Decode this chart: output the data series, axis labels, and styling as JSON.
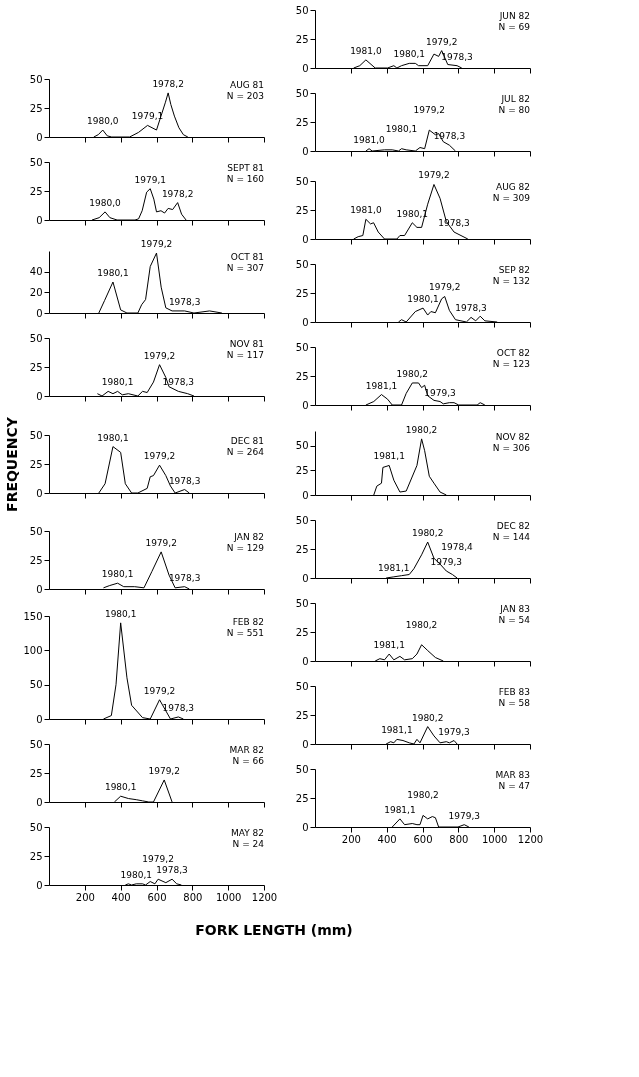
{
  "chart_data": [
    {
      "type": "line",
      "title": "JUN 82",
      "subtitle": "N = 69",
      "x": [
        216,
        250,
        284,
        336,
        405,
        440,
        457,
        483,
        526,
        560,
        578,
        629,
        664,
        690,
        707,
        741,
        793,
        819
      ],
      "series": [
        {
          "color": "#000000",
          "values": [
            0,
            2,
            7,
            0,
            0,
            2,
            0,
            2,
            4,
            4,
            2,
            2,
            12,
            10,
            15,
            3,
            2,
            0
          ]
        }
      ],
      "xlim": [
        0,
        1200
      ],
      "xticks": [
        200,
        400,
        600,
        800,
        1000,
        1200
      ],
      "ylim": [
        0,
        50
      ],
      "yticks": [
        0,
        25,
        50
      ],
      "tick_labels": "y",
      "annotations": [
        {
          "text": "1981,0",
          "x": 284,
          "y": 7
        },
        {
          "text": "1980,1",
          "x": 526,
          "y": 4
        },
        {
          "text": "1979,2",
          "x": 707,
          "y": 15
        },
        {
          "text": "1978,3",
          "x": 793,
          "y": 2
        }
      ]
    },
    {
      "type": "line",
      "title": "AUG 81",
      "subtitle": "N = 203",
      "x": [
        250,
        275,
        300,
        325,
        350,
        450,
        500,
        550,
        575,
        600,
        625,
        650,
        665,
        680,
        700,
        725,
        750,
        775
      ],
      "series": [
        {
          "color": "#000000",
          "values": [
            0,
            2,
            6,
            1,
            0,
            0,
            4,
            10,
            8,
            6,
            18,
            30,
            38,
            28,
            18,
            8,
            2,
            0
          ]
        }
      ],
      "xlim": [
        0,
        1200
      ],
      "xticks": [
        200,
        400,
        600,
        800,
        1000,
        1200
      ],
      "ylim": [
        0,
        50
      ],
      "yticks": [
        0,
        25,
        50
      ],
      "tick_labels": "y",
      "annotations": [
        {
          "text": "1980,0",
          "x": 300,
          "y": 6
        },
        {
          "text": "1979,1",
          "x": 550,
          "y": 10
        },
        {
          "text": "1978,2",
          "x": 665,
          "y": 38
        }
      ]
    },
    {
      "type": "line",
      "title": "JUL 82",
      "subtitle": "N = 80",
      "x": [
        284,
        302,
        319,
        388,
        431,
        466,
        483,
        509,
        560,
        586,
        612,
        638,
        672,
        690,
        716,
        750,
        784
      ],
      "series": [
        {
          "color": "#000000",
          "values": [
            0,
            2,
            0,
            1,
            1,
            0,
            2,
            1,
            0,
            3,
            2,
            18,
            14,
            15,
            8,
            5,
            0
          ]
        }
      ],
      "xlim": [
        0,
        1200
      ],
      "xticks": [
        200,
        400,
        600,
        800,
        1000,
        1200
      ],
      "ylim": [
        0,
        50
      ],
      "yticks": [
        0,
        25,
        50
      ],
      "tick_labels": "y",
      "annotations": [
        {
          "text": "1981,0",
          "x": 302,
          "y": 2
        },
        {
          "text": "1980,1",
          "x": 483,
          "y": 2
        },
        {
          "text": "1979,2",
          "x": 638,
          "y": 18
        },
        {
          "text": "1978,3",
          "x": 750,
          "y": 5
        }
      ]
    },
    {
      "type": "line",
      "title": "SEPT 81",
      "subtitle": "N = 160",
      "x": [
        240,
        280,
        313,
        340,
        380,
        480,
        500,
        520,
        545,
        565,
        585,
        600,
        625,
        645,
        665,
        690,
        718,
        740,
        765
      ],
      "series": [
        {
          "color": "#000000",
          "values": [
            0,
            2,
            7,
            2,
            0,
            0,
            1,
            8,
            24,
            27,
            18,
            7,
            8,
            6,
            10,
            9,
            15,
            5,
            0
          ]
        }
      ],
      "xlim": [
        0,
        1200
      ],
      "xticks": [
        200,
        400,
        600,
        800,
        1000,
        1200
      ],
      "ylim": [
        0,
        50
      ],
      "yticks": [
        0,
        25,
        50
      ],
      "tick_labels": "y",
      "annotations": [
        {
          "text": "1980,0",
          "x": 313,
          "y": 7
        },
        {
          "text": "1979,1",
          "x": 565,
          "y": 27
        },
        {
          "text": "1978,2",
          "x": 718,
          "y": 15
        }
      ]
    },
    {
      "type": "line",
      "title": "AUG 82",
      "subtitle": "N = 309",
      "x": [
        216,
        241,
        267,
        284,
        310,
        327,
        353,
        388,
        457,
        474,
        500,
        543,
        569,
        595,
        629,
        664,
        698,
        733,
        776,
        853
      ],
      "series": [
        {
          "color": "#000000",
          "values": [
            0,
            2,
            3,
            17,
            13,
            14,
            6,
            0,
            0,
            3,
            3,
            14,
            10,
            10,
            30,
            47,
            35,
            15,
            6,
            0
          ]
        }
      ],
      "xlim": [
        0,
        1200
      ],
      "xticks": [
        200,
        400,
        600,
        800,
        1000,
        1200
      ],
      "ylim": [
        0,
        50
      ],
      "yticks": [
        0,
        25,
        50
      ],
      "tick_labels": "y",
      "annotations": [
        {
          "text": "1981,0",
          "x": 284,
          "y": 17
        },
        {
          "text": "1980,1",
          "x": 543,
          "y": 14
        },
        {
          "text": "1979,2",
          "x": 664,
          "y": 47
        },
        {
          "text": "1978,3",
          "x": 776,
          "y": 6
        }
      ]
    },
    {
      "type": "line",
      "title": "OCT 81",
      "subtitle": "N = 307",
      "x": [
        278,
        310,
        357,
        400,
        435,
        496,
        517,
        539,
        565,
        600,
        626,
        652,
        687,
        757,
        809,
        896,
        965
      ],
      "series": [
        {
          "color": "#000000",
          "values": [
            0,
            12,
            30,
            3,
            0,
            0,
            8,
            13,
            45,
            58,
            25,
            5,
            2,
            2,
            0,
            2,
            0
          ]
        }
      ],
      "xlim": [
        0,
        1200
      ],
      "xticks": [
        200,
        400,
        600,
        800,
        1000,
        1200
      ],
      "ylim": [
        0,
        60
      ],
      "yticks": [
        0,
        20,
        40
      ],
      "tick_labels": "y",
      "annotations": [
        {
          "text": "1980,1",
          "x": 357,
          "y": 30
        },
        {
          "text": "1979,2",
          "x": 600,
          "y": 58
        },
        {
          "text": "1978,3",
          "x": 757,
          "y": 2
        }
      ]
    },
    {
      "type": "line",
      "title": "SEP 82",
      "subtitle": "N = 132",
      "x": [
        466,
        483,
        509,
        560,
        603,
        629,
        647,
        672,
        707,
        724,
        750,
        784,
        845,
        871,
        897,
        922,
        948,
        1017
      ],
      "series": [
        {
          "color": "#000000",
          "values": [
            0,
            2,
            0,
            9,
            12,
            6,
            9,
            8,
            20,
            22,
            10,
            2,
            0,
            4,
            1,
            5,
            1,
            0
          ]
        }
      ],
      "xlim": [
        0,
        1200
      ],
      "xticks": [
        200,
        400,
        600,
        800,
        1000,
        1200
      ],
      "ylim": [
        0,
        50
      ],
      "yticks": [
        0,
        25,
        50
      ],
      "tick_labels": "y",
      "annotations": [
        {
          "text": "1980,1",
          "x": 603,
          "y": 12
        },
        {
          "text": "1979,2",
          "x": 724,
          "y": 22
        },
        {
          "text": "1978,3",
          "x": 871,
          "y": 4
        }
      ]
    },
    {
      "type": "line",
      "title": "NOV 81",
      "subtitle": "N = 117",
      "x": [
        270,
        296,
        330,
        357,
        383,
        409,
        443,
        496,
        522,
        548,
        583,
        617,
        652,
        670,
        722,
        774,
        809
      ],
      "series": [
        {
          "color": "#000000",
          "values": [
            2,
            0,
            4,
            2,
            4,
            1,
            2,
            0,
            4,
            3,
            12,
            27,
            16,
            8,
            4,
            2,
            0
          ]
        }
      ],
      "xlim": [
        0,
        1200
      ],
      "xticks": [
        200,
        400,
        600,
        800,
        1000,
        1200
      ],
      "ylim": [
        0,
        50
      ],
      "yticks": [
        0,
        25,
        50
      ],
      "tick_labels": "y",
      "annotations": [
        {
          "text": "1980,1",
          "x": 383,
          "y": 4
        },
        {
          "text": "1979,2",
          "x": 617,
          "y": 27
        },
        {
          "text": "1978,3",
          "x": 722,
          "y": 4
        }
      ]
    },
    {
      "type": "line",
      "title": "OCT 82",
      "subtitle": "N = 123",
      "x": [
        284,
        328,
        371,
        405,
        431,
        483,
        509,
        543,
        578,
        595,
        612,
        629,
        664,
        698,
        716,
        750,
        776,
        802,
        905,
        922,
        948
      ],
      "series": [
        {
          "color": "#000000",
          "values": [
            0,
            3,
            9,
            5,
            0,
            0,
            10,
            19,
            19,
            15,
            17,
            8,
            4,
            3,
            1,
            2,
            2,
            0,
            0,
            2,
            0
          ]
        }
      ],
      "xlim": [
        0,
        1200
      ],
      "xticks": [
        200,
        400,
        600,
        800,
        1000,
        1200
      ],
      "ylim": [
        0,
        50
      ],
      "yticks": [
        0,
        25,
        50
      ],
      "tick_labels": "y",
      "annotations": [
        {
          "text": "1981,1",
          "x": 371,
          "y": 9
        },
        {
          "text": "1980,2",
          "x": 543,
          "y": 19
        },
        {
          "text": "1979,3",
          "x": 698,
          "y": 3
        }
      ]
    },
    {
      "type": "line",
      "title": "DEC 81",
      "subtitle": "N = 264",
      "ylabel": "FREQUENCY",
      "x": [
        278,
        313,
        357,
        400,
        426,
        461,
        496,
        548,
        565,
        583,
        617,
        652,
        678,
        704,
        757,
        783
      ],
      "series": [
        {
          "color": "#000000",
          "values": [
            0,
            8,
            40,
            35,
            8,
            0,
            0,
            4,
            14,
            15,
            24,
            15,
            6,
            0,
            3,
            0
          ]
        }
      ],
      "xlim": [
        0,
        1200
      ],
      "xticks": [
        200,
        400,
        600,
        800,
        1000,
        1200
      ],
      "ylim": [
        0,
        50
      ],
      "yticks": [
        0,
        25,
        50
      ],
      "tick_labels": "y",
      "annotations": [
        {
          "text": "1980,1",
          "x": 357,
          "y": 40
        },
        {
          "text": "1979,2",
          "x": 617,
          "y": 24
        },
        {
          "text": "1978,3",
          "x": 757,
          "y": 3
        }
      ]
    },
    {
      "type": "line",
      "title": "NOV 82",
      "subtitle": "N = 306",
      "x": [
        328,
        345,
        371,
        379,
        414,
        440,
        474,
        509,
        569,
        595,
        612,
        638,
        664,
        698,
        733
      ],
      "series": [
        {
          "color": "#000000",
          "values": [
            0,
            9,
            12,
            28,
            30,
            15,
            3,
            4,
            30,
            57,
            45,
            19,
            12,
            3,
            0
          ]
        }
      ],
      "xlim": [
        0,
        1200
      ],
      "xticks": [
        200,
        400,
        600,
        800,
        1000,
        1200
      ],
      "ylim": [
        0,
        65
      ],
      "yticks": [
        0,
        25,
        50
      ],
      "tick_labels": "y",
      "annotations": [
        {
          "text": "1981,1",
          "x": 414,
          "y": 30
        },
        {
          "text": "1980,2",
          "x": 595,
          "y": 57
        }
      ]
    },
    {
      "type": "line",
      "title": "JAN 82",
      "subtitle": "N = 129",
      "x": [
        304,
        339,
        383,
        417,
        478,
        530,
        574,
        626,
        670,
        704,
        757,
        783
      ],
      "series": [
        {
          "color": "#000000",
          "values": [
            1,
            3,
            5,
            2,
            2,
            1,
            15,
            32,
            12,
            1,
            2,
            0
          ]
        }
      ],
      "xlim": [
        0,
        1200
      ],
      "xticks": [
        200,
        400,
        600,
        800,
        1000,
        1200
      ],
      "ylim": [
        0,
        50
      ],
      "yticks": [
        0,
        25,
        50
      ],
      "tick_labels": "y",
      "annotations": [
        {
          "text": "1980,1",
          "x": 383,
          "y": 5
        },
        {
          "text": "1979,2",
          "x": 626,
          "y": 32
        },
        {
          "text": "1978,3",
          "x": 757,
          "y": 2
        }
      ]
    },
    {
      "type": "line",
      "title": "DEC 82",
      "subtitle": "N = 144",
      "x": [
        397,
        440,
        483,
        526,
        552,
        595,
        629,
        664,
        698,
        733,
        767,
        793
      ],
      "series": [
        {
          "color": "#000000",
          "values": [
            0,
            1,
            2,
            3,
            8,
            20,
            31,
            17,
            12,
            6,
            3,
            0
          ]
        }
      ],
      "xlim": [
        0,
        1200
      ],
      "xticks": [
        200,
        400,
        600,
        800,
        1000,
        1200
      ],
      "ylim": [
        0,
        50
      ],
      "yticks": [
        0,
        25,
        50
      ],
      "tick_labels": "y",
      "annotations": [
        {
          "text": "1981,1",
          "x": 440,
          "y": 1
        },
        {
          "text": "1980,2",
          "x": 629,
          "y": 31
        },
        {
          "text": "1979,3",
          "x": 733,
          "y": 6
        },
        {
          "text": "1978,4",
          "x": 793,
          "y": 0
        }
      ]
    },
    {
      "type": "line",
      "title": "FEB 82",
      "subtitle": "N = 551",
      "x": [
        304,
        348,
        374,
        400,
        435,
        461,
        522,
        565,
        617,
        678,
        722,
        750
      ],
      "series": [
        {
          "color": "#000000",
          "values": [
            0,
            5,
            50,
            140,
            60,
            20,
            2,
            0,
            28,
            0,
            3,
            0
          ]
        }
      ],
      "xlim": [
        0,
        1200
      ],
      "xticks": [
        200,
        400,
        600,
        800,
        1000,
        1200
      ],
      "ylim": [
        0,
        150
      ],
      "yticks": [
        0,
        50,
        100,
        150
      ],
      "tick_labels": "y",
      "annotations": [
        {
          "text": "1980,1",
          "x": 400,
          "y": 140
        },
        {
          "text": "1979,2",
          "x": 617,
          "y": 28
        },
        {
          "text": "1978,3",
          "x": 722,
          "y": 3
        }
      ]
    },
    {
      "type": "line",
      "title": "JAN 83",
      "subtitle": "N = 54",
      "x": [
        336,
        362,
        388,
        414,
        440,
        474,
        500,
        543,
        569,
        595,
        629,
        672,
        716
      ],
      "series": [
        {
          "color": "#000000",
          "values": [
            0,
            2,
            1,
            6,
            1,
            4,
            1,
            2,
            6,
            14,
            9,
            3,
            0
          ]
        }
      ],
      "xlim": [
        0,
        1200
      ],
      "xticks": [
        200,
        400,
        600,
        800,
        1000,
        1200
      ],
      "ylim": [
        0,
        50
      ],
      "yticks": [
        0,
        25,
        50
      ],
      "tick_labels": "y",
      "annotations": [
        {
          "text": "1981,1",
          "x": 414,
          "y": 6
        },
        {
          "text": "1980,2",
          "x": 595,
          "y": 14
        }
      ]
    },
    {
      "type": "line",
      "title": "MAR 82",
      "subtitle": "N = 66",
      "x": [
        365,
        400,
        443,
        487,
        522,
        557,
        583,
        643,
        687
      ],
      "series": [
        {
          "color": "#000000",
          "values": [
            0,
            5,
            3,
            2,
            1,
            0,
            0,
            19,
            0
          ]
        }
      ],
      "xlim": [
        0,
        1200
      ],
      "xticks": [
        200,
        400,
        600,
        800,
        1000,
        1200
      ],
      "ylim": [
        0,
        50
      ],
      "yticks": [
        0,
        25,
        50
      ],
      "tick_labels": "y",
      "annotations": [
        {
          "text": "1980,1",
          "x": 400,
          "y": 5
        },
        {
          "text": "1979,2",
          "x": 643,
          "y": 19
        }
      ]
    },
    {
      "type": "line",
      "title": "FEB 83",
      "subtitle": "N = 58",
      "x": [
        397,
        422,
        440,
        457,
        491,
        526,
        552,
        569,
        586,
        629,
        664,
        698,
        733,
        750,
        776,
        793
      ],
      "series": [
        {
          "color": "#000000",
          "values": [
            0,
            2,
            1,
            4,
            3,
            1,
            0,
            4,
            1,
            15,
            7,
            1,
            2,
            1,
            3,
            0
          ]
        }
      ],
      "xlim": [
        0,
        1200
      ],
      "xticks": [
        200,
        400,
        600,
        800,
        1000,
        1200
      ],
      "ylim": [
        0,
        50
      ],
      "yticks": [
        0,
        25,
        50
      ],
      "tick_labels": "y",
      "annotations": [
        {
          "text": "1981,1",
          "x": 457,
          "y": 4
        },
        {
          "text": "1980,2",
          "x": 629,
          "y": 15
        },
        {
          "text": "1979,3",
          "x": 776,
          "y": 3
        }
      ]
    },
    {
      "type": "line",
      "title": "MAY 82",
      "subtitle": "N = 24",
      "xlabel": "FORK LENGTH (mm)",
      "x": [
        426,
        443,
        461,
        487,
        522,
        539,
        565,
        591,
        609,
        652,
        687,
        713,
        739
      ],
      "series": [
        {
          "color": "#000000",
          "values": [
            0,
            1,
            0,
            1,
            1,
            0,
            3,
            1,
            5,
            2,
            5,
            1,
            0
          ]
        }
      ],
      "xlim": [
        0,
        1200
      ],
      "xticks": [
        200,
        400,
        600,
        800,
        1000,
        1200
      ],
      "ylim": [
        0,
        50
      ],
      "yticks": [
        0,
        25,
        50
      ],
      "annotations": [
        {
          "text": "1980,1",
          "x": 487,
          "y": 1
        },
        {
          "text": "1979,2",
          "x": 609,
          "y": 5
        },
        {
          "text": "1978,3",
          "x": 687,
          "y": 5
        }
      ]
    },
    {
      "type": "line",
      "title": "MAR 83",
      "subtitle": "N = 47",
      "x": [
        431,
        474,
        500,
        543,
        569,
        586,
        603,
        629,
        655,
        672,
        690,
        798,
        833,
        859
      ],
      "series": [
        {
          "color": "#000000",
          "values": [
            0,
            7,
            2,
            3,
            2,
            2,
            10,
            7,
            9,
            8,
            0,
            0,
            2,
            0
          ]
        }
      ],
      "xlim": [
        0,
        1200
      ],
      "xticks": [
        200,
        400,
        600,
        800,
        1000,
        1200
      ],
      "ylim": [
        0,
        50
      ],
      "yticks": [
        0,
        25,
        50
      ],
      "annotations": [
        {
          "text": "1981,1",
          "x": 474,
          "y": 7
        },
        {
          "text": "1980,2",
          "x": 603,
          "y": 10
        },
        {
          "text": "1979,3",
          "x": 833,
          "y": 2
        }
      ]
    }
  ]
}
